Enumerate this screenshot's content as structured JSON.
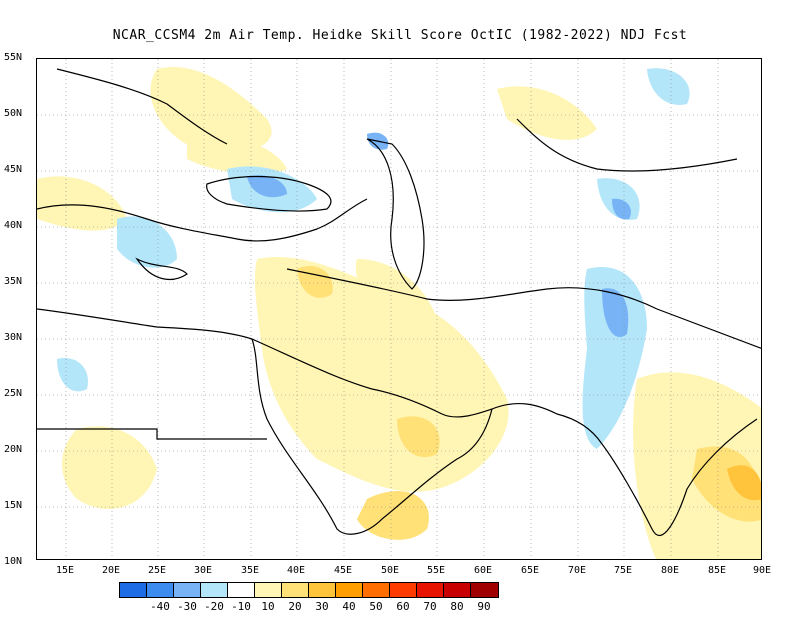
{
  "title": "NCAR_CCSM4  2m Air Temp. Heidke Skill Score OctIC (1982-2022) NDJ Fcst",
  "lat_labels": [
    "55N",
    "50N",
    "45N",
    "40N",
    "35N",
    "30N",
    "25N",
    "20N",
    "15N",
    "10N"
  ],
  "lon_labels": [
    "15E",
    "20E",
    "25E",
    "30E",
    "35E",
    "40E",
    "45E",
    "50E",
    "55E",
    "60E",
    "65E",
    "70E",
    "75E",
    "80E",
    "85E",
    "90E"
  ],
  "colorbar": {
    "colors": [
      "#1e6be6",
      "#3c8cf0",
      "#78b4f5",
      "#b4e6fa",
      "#ffffff",
      "#fff5b4",
      "#ffe178",
      "#ffc33c",
      "#ffa000",
      "#ff6e00",
      "#ff3c00",
      "#e61400",
      "#c80000",
      "#a00000"
    ],
    "labels": [
      "-40",
      "-30",
      "-20",
      "-10",
      "10",
      "20",
      "30",
      "40",
      "50",
      "60",
      "70",
      "80",
      "90"
    ]
  }
}
